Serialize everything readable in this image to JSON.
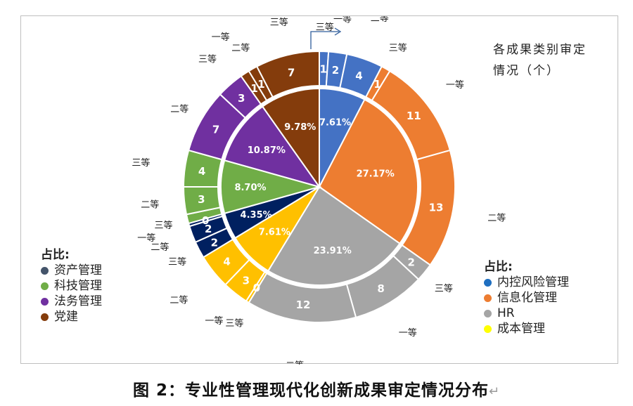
{
  "chart_data": {
    "type": "pie",
    "inner_ring": {
      "percent_labels": [
        "7.61%",
        "27.17%",
        "23.91%",
        "7.61%",
        "4.35%",
        "8.70%",
        "10.87%",
        "9.78%"
      ],
      "values": [
        7,
        25,
        22,
        7,
        4,
        8,
        10,
        9
      ],
      "colors": [
        "#4472C4",
        "#ED7D31",
        "#A5A5A5",
        "#FFC000",
        "#002060",
        "#70AD47",
        "#7030A0",
        "#843C0C"
      ]
    },
    "outer_ring": {
      "values": [
        1,
        2,
        4,
        1,
        11,
        13,
        2,
        8,
        12,
        0.35,
        3,
        4,
        2,
        2,
        0.35,
        1,
        3,
        4,
        7,
        3,
        1,
        1,
        7
      ],
      "value_labels": [
        "1",
        "2",
        "4",
        "1",
        "11",
        "13",
        "2",
        "8",
        "12",
        "0",
        "3",
        "4",
        "2",
        "2",
        "0",
        "",
        "3",
        "4",
        "7",
        "3",
        "1",
        "1",
        "7"
      ],
      "group_index": [
        0,
        0,
        0,
        1,
        1,
        1,
        2,
        2,
        2,
        3,
        3,
        3,
        4,
        4,
        4,
        5,
        5,
        5,
        6,
        6,
        7,
        7,
        7
      ],
      "grades": [
        "三等",
        "一等",
        "二等",
        "三等",
        "一等",
        "二等",
        "三等",
        "一等",
        "二等",
        "三等",
        "一等",
        "二等",
        "三等",
        "二等",
        "一等",
        "三等",
        "二等",
        "三等",
        "二等",
        "三等",
        "一等",
        "二等",
        "三等"
      ]
    },
    "title": "各成果类别审定\n情况（个）"
  },
  "legend_left": {
    "title": "占比:",
    "items": [
      {
        "label": "资产管理",
        "color": "#44546A"
      },
      {
        "label": "科技管理",
        "color": "#70AD47"
      },
      {
        "label": "法务管理",
        "color": "#7030A0"
      },
      {
        "label": "党建",
        "color": "#843C0C"
      }
    ]
  },
  "legend_right": {
    "title": "占比:",
    "items": [
      {
        "label": "内控风险管理",
        "color": "#1F6FC0"
      },
      {
        "label": "信息化管理",
        "color": "#ED7D31"
      },
      {
        "label": "HR",
        "color": "#A5A5A5"
      },
      {
        "label": "成本管理",
        "color": "#FFFF00"
      }
    ]
  },
  "caption": {
    "text": "图 2：专业性管理现代化创新成果审定情况分布",
    "mark": "↵"
  }
}
